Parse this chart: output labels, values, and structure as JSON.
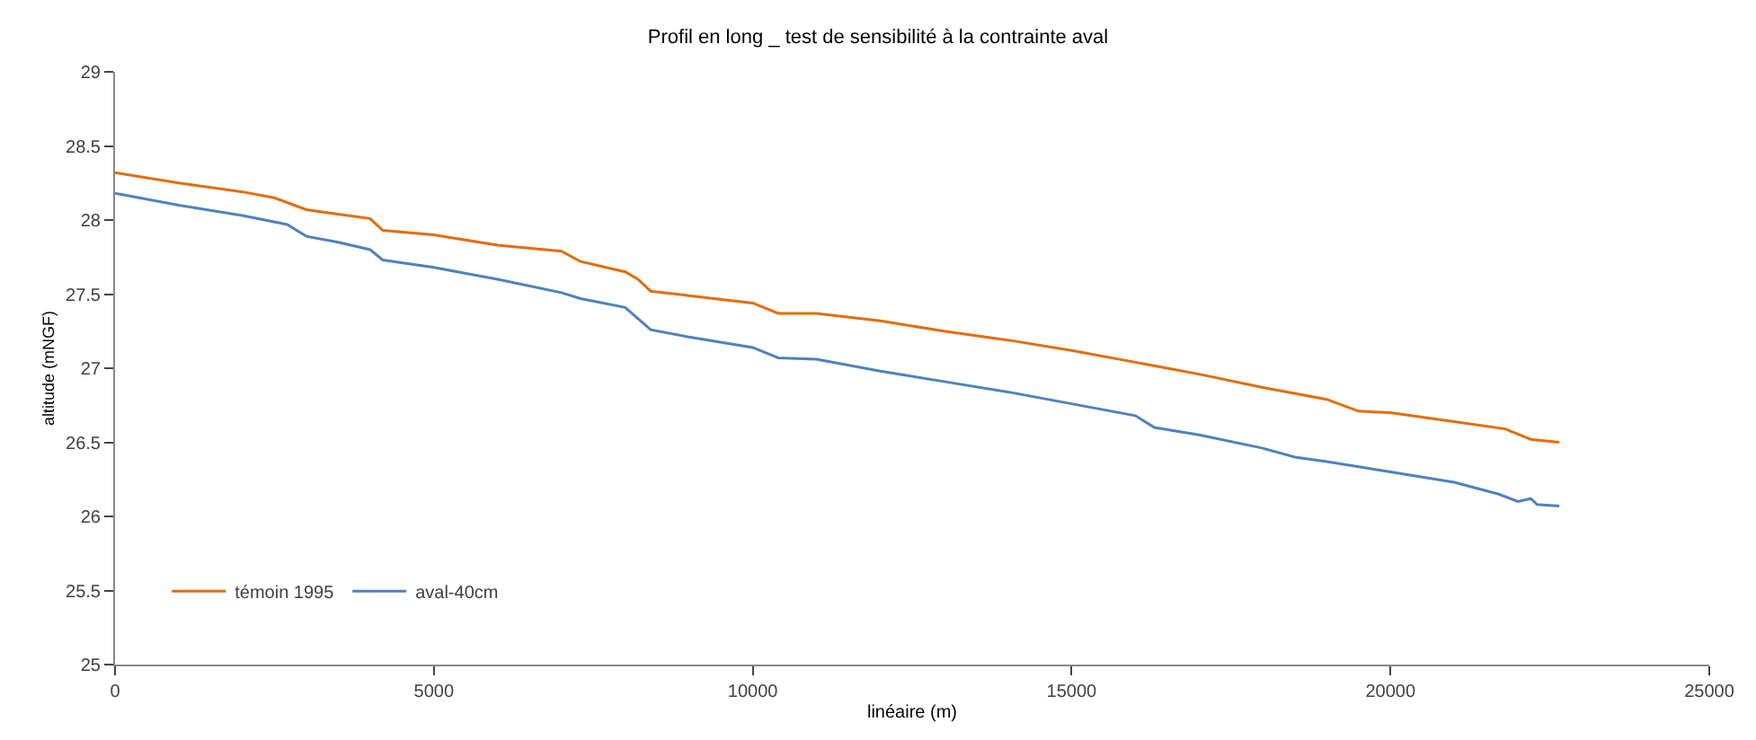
{
  "chart_data": {
    "type": "line",
    "title": "Profil en long _ test de sensibilité à la contrainte aval",
    "xlabel": "linéaire (m)",
    "ylabel": "altitude (mNGF)",
    "xlim": [
      0,
      25000
    ],
    "xticks": [
      0,
      5000,
      10000,
      15000,
      20000,
      25000
    ],
    "ylim": [
      25,
      29
    ],
    "yticks": [
      25,
      25.5,
      26,
      26.5,
      27,
      27.5,
      28,
      28.5,
      29
    ],
    "legend": "bottom left",
    "marker": "none",
    "line_style": "solid",
    "series": [
      {
        "name": "témoin 1995",
        "color": "#e46c0a",
        "x": [
          0,
          1000,
          2000,
          2500,
          3000,
          3500,
          4000,
          4200,
          5000,
          6000,
          7000,
          7300,
          8000,
          8200,
          8400,
          9000,
          10000,
          10400,
          11000,
          12000,
          13000,
          14000,
          15000,
          16000,
          17000,
          18000,
          19000,
          19500,
          20000,
          21000,
          21800,
          22200,
          22650
        ],
        "values": [
          28.32,
          28.25,
          28.19,
          28.15,
          28.07,
          28.04,
          28.01,
          27.93,
          27.9,
          27.83,
          27.79,
          27.72,
          27.65,
          27.6,
          27.52,
          27.49,
          27.44,
          27.37,
          27.37,
          27.32,
          27.25,
          27.19,
          27.12,
          27.04,
          26.96,
          26.87,
          26.79,
          26.71,
          26.7,
          26.64,
          26.59,
          26.52,
          26.5
        ]
      },
      {
        "name": "aval-40cm",
        "color": "#4f81bd",
        "x": [
          0,
          1000,
          2000,
          2700,
          3000,
          3500,
          4000,
          4200,
          5000,
          6000,
          7000,
          7300,
          8000,
          8400,
          9000,
          10000,
          10400,
          11000,
          12000,
          13000,
          14000,
          15000,
          16000,
          16300,
          17000,
          18000,
          18500,
          19000,
          20000,
          21000,
          21700,
          22000,
          22200,
          22300,
          22650
        ],
        "values": [
          28.18,
          28.1,
          28.03,
          27.97,
          27.89,
          27.85,
          27.8,
          27.73,
          27.68,
          27.6,
          27.51,
          27.47,
          27.41,
          27.26,
          27.21,
          27.14,
          27.07,
          27.06,
          26.98,
          26.91,
          26.84,
          26.76,
          26.68,
          26.6,
          26.55,
          26.46,
          26.4,
          26.37,
          26.3,
          26.23,
          26.15,
          26.1,
          26.12,
          26.08,
          26.07
        ]
      }
    ]
  }
}
